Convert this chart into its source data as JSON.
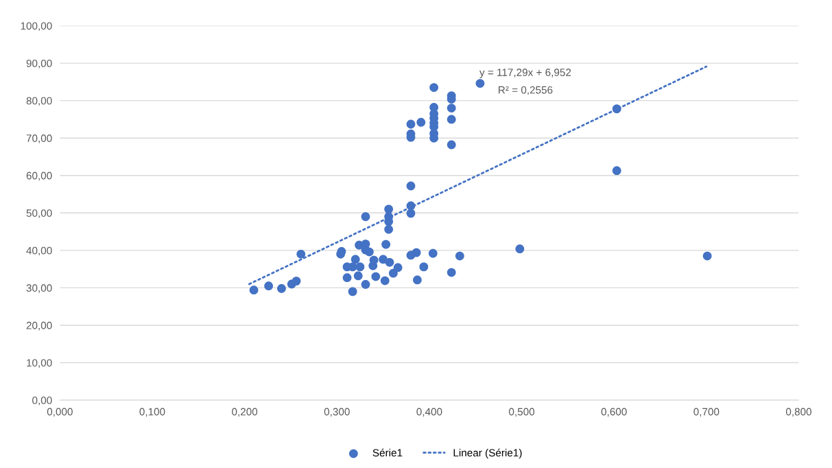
{
  "chart_data": {
    "type": "scatter",
    "series": [
      {
        "name": "Série1",
        "color": "#4472c4",
        "marker": "circle",
        "x": [
          0.21,
          0.226,
          0.24,
          0.251,
          0.256,
          0.261,
          0.305,
          0.304,
          0.311,
          0.311,
          0.317,
          0.32,
          0.317,
          0.323,
          0.325,
          0.324,
          0.331,
          0.331,
          0.335,
          0.331,
          0.331,
          0.339,
          0.34,
          0.342,
          0.35,
          0.353,
          0.352,
          0.357,
          0.361,
          0.366,
          0.356,
          0.356,
          0.356,
          0.356,
          0.38,
          0.38,
          0.38,
          0.386,
          0.387,
          0.394,
          0.404,
          0.424,
          0.433,
          0.38,
          0.38,
          0.38,
          0.391,
          0.38,
          0.405,
          0.405,
          0.405,
          0.405,
          0.405,
          0.405,
          0.405,
          0.405,
          0.455,
          0.424,
          0.424,
          0.424,
          0.424,
          0.424,
          0.498,
          0.603,
          0.603,
          0.701
        ],
        "values": [
          29.4,
          30.5,
          29.8,
          31.0,
          31.8,
          39.0,
          39.7,
          39.0,
          35.6,
          32.7,
          29.0,
          37.6,
          35.6,
          33.2,
          35.6,
          41.4,
          41.7,
          40.1,
          39.6,
          49.0,
          30.9,
          35.9,
          37.4,
          33.0,
          37.6,
          41.6,
          31.9,
          36.8,
          33.9,
          35.4,
          51.0,
          49.0,
          47.7,
          45.6,
          51.9,
          49.9,
          38.7,
          39.4,
          32.1,
          35.6,
          39.2,
          34.1,
          38.5,
          57.2,
          73.7,
          71.1,
          74.2,
          70.2,
          83.5,
          78.2,
          76.5,
          75.3,
          74.0,
          73.0,
          71.2,
          70.0,
          84.6,
          81.3,
          80.4,
          78.0,
          75.0,
          68.2,
          40.4,
          61.3,
          77.8,
          38.5
        ]
      },
      {
        "name": "Linear (Série1)",
        "type": "line",
        "color": "#4472c4",
        "line_style": "dotted",
        "marker": "none",
        "x": [
          0.205,
          0.7
        ],
        "values": [
          31.0,
          89.1
        ]
      }
    ],
    "xlim": [
      0,
      0.8
    ],
    "xticks": [
      {
        "value": 0,
        "label": "0,000"
      },
      {
        "value": 0.1,
        "label": "0,100"
      },
      {
        "value": 0.2,
        "label": "0,200"
      },
      {
        "value": 0.3,
        "label": "0,300"
      },
      {
        "value": 0.4,
        "label": "0,400"
      },
      {
        "value": 0.5,
        "label": "0,500"
      },
      {
        "value": 0.6,
        "label": "0,600"
      },
      {
        "value": 0.7,
        "label": "0,700"
      },
      {
        "value": 0.8,
        "label": "0,800"
      }
    ],
    "ylim": [
      0,
      100
    ],
    "yticks": [
      {
        "value": 0,
        "label": "0,00"
      },
      {
        "value": 10,
        "label": "10,00"
      },
      {
        "value": 20,
        "label": "20,00"
      },
      {
        "value": 30,
        "label": "30,00"
      },
      {
        "value": 40,
        "label": "40,00"
      },
      {
        "value": 50,
        "label": "50,00"
      },
      {
        "value": 60,
        "label": "60,00"
      },
      {
        "value": 70,
        "label": "70,00"
      },
      {
        "value": 80,
        "label": "80,00"
      },
      {
        "value": 90,
        "label": "90,00"
      },
      {
        "value": 100,
        "label": "100,00"
      }
    ],
    "grid": "y",
    "legend": "bottom",
    "annotations": [
      "y = 117,29x + 6,952",
      "R² = 0,2556"
    ]
  }
}
